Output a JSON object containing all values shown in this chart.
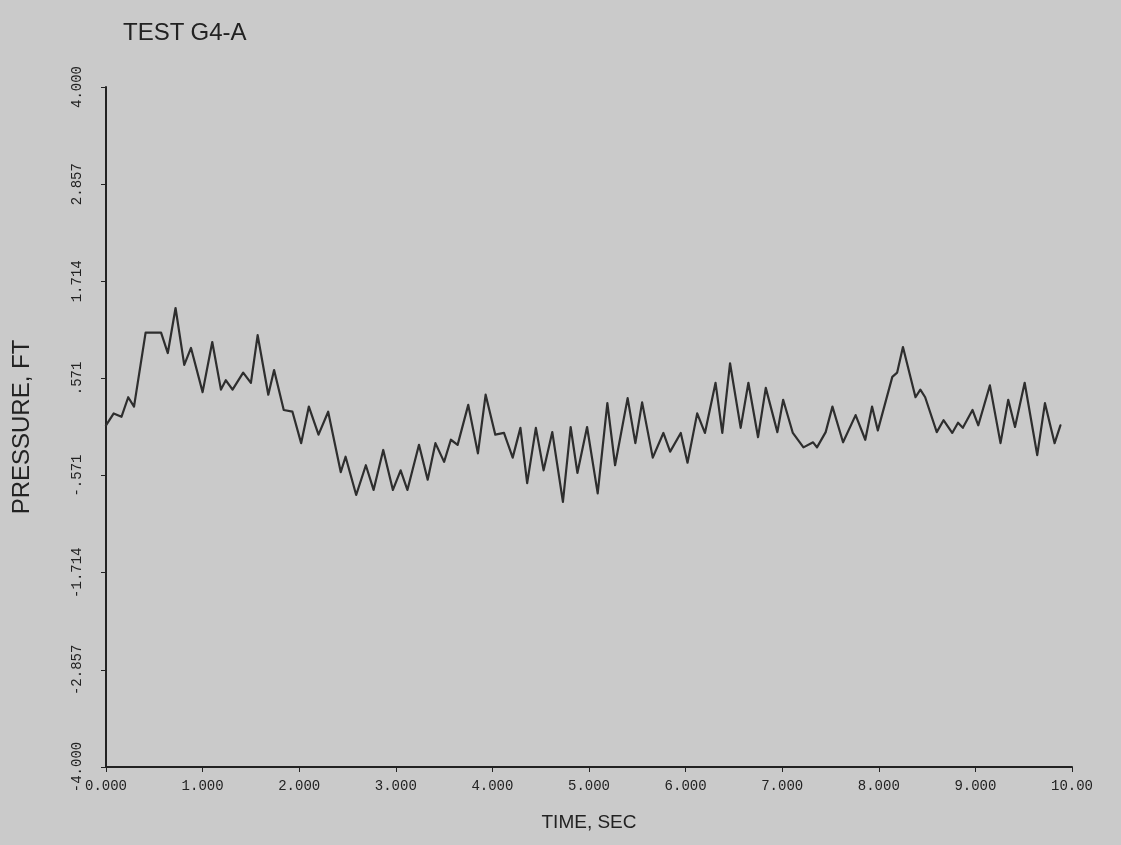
{
  "chart_data": {
    "type": "line",
    "title": "TEST G4-A",
    "xlabel": "TIME, SEC",
    "ylabel": "PRESSURE, FT",
    "xlim": [
      0,
      10
    ],
    "ylim": [
      -4,
      4
    ],
    "xticks": [
      {
        "value": 0,
        "label": "0.000"
      },
      {
        "value": 1,
        "label": "1.000"
      },
      {
        "value": 2,
        "label": "2.000"
      },
      {
        "value": 3,
        "label": "3.000"
      },
      {
        "value": 4,
        "label": "4.000"
      },
      {
        "value": 5,
        "label": "5.000"
      },
      {
        "value": 6,
        "label": "6.000"
      },
      {
        "value": 7,
        "label": "7.000"
      },
      {
        "value": 8,
        "label": "8.000"
      },
      {
        "value": 9,
        "label": "9.000"
      },
      {
        "value": 10,
        "label": "10.00"
      }
    ],
    "yticks": [
      {
        "value": -4,
        "label": "-4.000"
      },
      {
        "value": -2.857,
        "label": "-2.857"
      },
      {
        "value": -1.714,
        "label": "-1.714"
      },
      {
        "value": -0.571,
        "label": "-.571"
      },
      {
        "value": 0.571,
        "label": ".571"
      },
      {
        "value": 1.714,
        "label": "1.714"
      },
      {
        "value": 2.857,
        "label": "2.857"
      },
      {
        "value": 4,
        "label": "4.000"
      }
    ],
    "grid": false,
    "marker": "none",
    "line_style": "solid",
    "x": [
      0,
      0.08,
      0.16,
      0.23,
      0.29,
      0.41,
      0.57,
      0.64,
      0.72,
      0.81,
      0.88,
      1.0,
      1.1,
      1.19,
      1.24,
      1.31,
      1.42,
      1.5,
      1.57,
      1.68,
      1.74,
      1.84,
      1.93,
      2.02,
      2.1,
      2.2,
      2.3,
      2.43,
      2.48,
      2.59,
      2.69,
      2.77,
      2.87,
      2.97,
      3.05,
      3.12,
      3.24,
      3.33,
      3.41,
      3.5,
      3.57,
      3.64,
      3.75,
      3.85,
      3.93,
      4.03,
      4.12,
      4.21,
      4.29,
      4.36,
      4.45,
      4.53,
      4.62,
      4.73,
      4.81,
      4.88,
      4.98,
      5.09,
      5.19,
      5.27,
      5.4,
      5.48,
      5.55,
      5.66,
      5.77,
      5.84,
      5.95,
      6.02,
      6.12,
      6.2,
      6.31,
      6.38,
      6.46,
      6.57,
      6.65,
      6.75,
      6.83,
      6.95,
      7.01,
      7.11,
      7.22,
      7.32,
      7.36,
      7.45,
      7.52,
      7.63,
      7.76,
      7.86,
      7.93,
      7.99,
      8.14,
      8.19,
      8.25,
      8.38,
      8.43,
      8.48,
      8.6,
      8.67,
      8.76,
      8.82,
      8.87,
      8.97,
      9.03,
      9.15,
      9.26,
      9.34,
      9.41,
      9.51,
      9.64,
      9.72,
      9.82,
      9.88
    ],
    "series": [
      {
        "color": "#2e2e2e",
        "values": [
          0.02,
          0.16,
          0.12,
          0.35,
          0.24,
          1.11,
          1.11,
          0.87,
          1.4,
          0.73,
          0.93,
          0.41,
          1.0,
          0.44,
          0.55,
          0.44,
          0.64,
          0.52,
          1.08,
          0.38,
          0.67,
          0.2,
          0.18,
          -0.19,
          0.24,
          -0.09,
          0.18,
          -0.53,
          -0.35,
          -0.8,
          -0.45,
          -0.74,
          -0.27,
          -0.74,
          -0.51,
          -0.74,
          -0.21,
          -0.62,
          -0.19,
          -0.41,
          -0.15,
          -0.21,
          0.26,
          -0.31,
          0.38,
          -0.09,
          -0.07,
          -0.36,
          -0.01,
          -0.66,
          -0.01,
          -0.51,
          -0.06,
          -0.88,
          0.0,
          -0.54,
          0.0,
          -0.78,
          0.28,
          -0.45,
          0.34,
          -0.19,
          0.29,
          -0.36,
          -0.07,
          -0.29,
          -0.07,
          -0.42,
          0.16,
          -0.07,
          0.52,
          -0.07,
          0.75,
          -0.01,
          0.52,
          -0.12,
          0.46,
          -0.06,
          0.32,
          -0.07,
          -0.24,
          -0.18,
          -0.24,
          -0.06,
          0.24,
          -0.18,
          0.14,
          -0.15,
          0.24,
          -0.04,
          0.59,
          0.64,
          0.94,
          0.35,
          0.44,
          0.35,
          -0.06,
          0.08,
          -0.07,
          0.05,
          -0.01,
          0.2,
          0.02,
          0.49,
          -0.19,
          0.32,
          0.0,
          0.52,
          -0.33,
          0.28,
          -0.19,
          0.02
        ]
      }
    ]
  }
}
